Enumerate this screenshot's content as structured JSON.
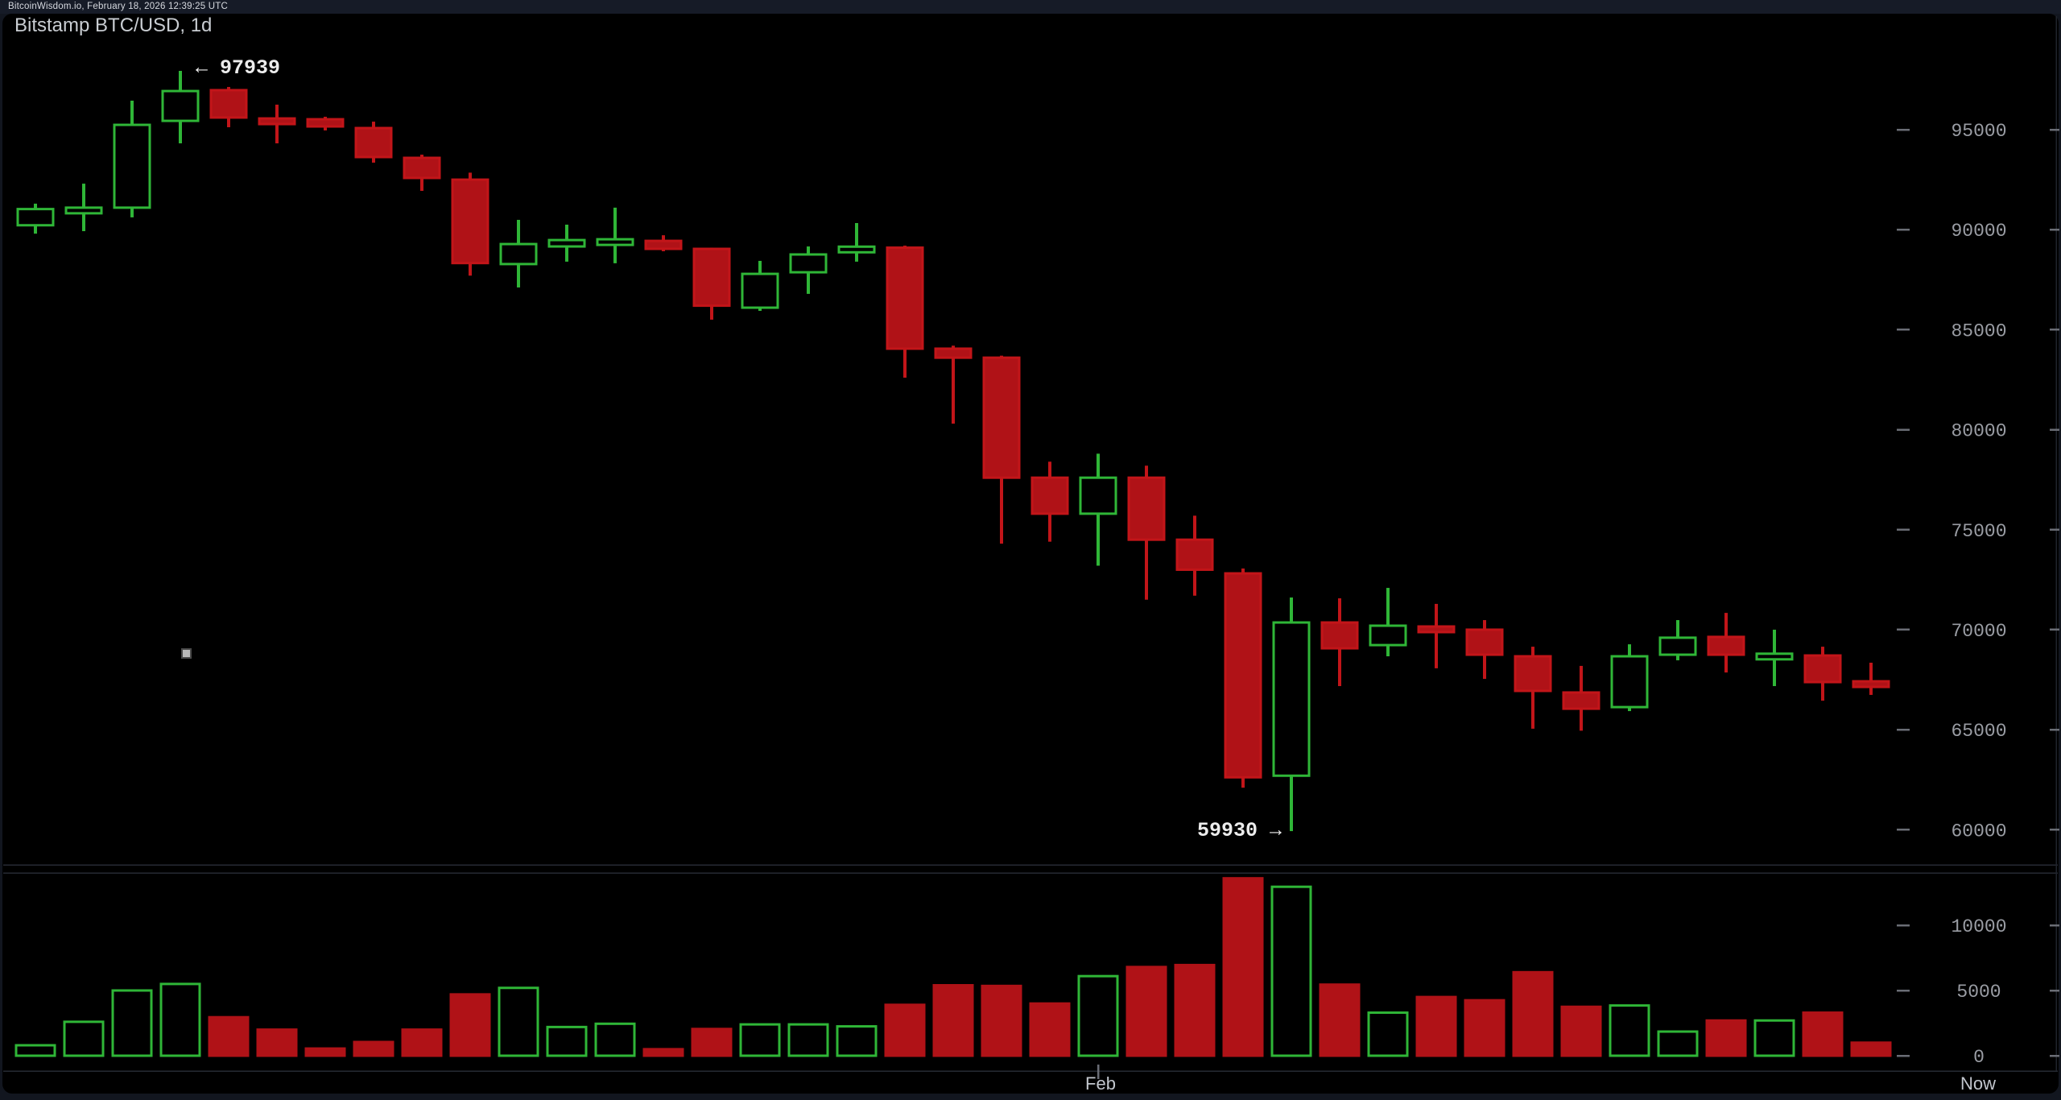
{
  "header": {
    "text": "BitcoinWisdom.io, February 18, 2026 12:39:25 UTC"
  },
  "chart": {
    "title": "Bitstamp BTC/USD, 1d",
    "high_annotation": "← 97939",
    "low_annotation": "59930 →",
    "month_label": "Feb",
    "now_label": "Now"
  },
  "colors": {
    "page_bg": "#12161f",
    "bar_bg": "#161b27",
    "chart_bg": "#000000",
    "up": "#2fb637",
    "down_fill": "#b01217",
    "down_bright": "#c21519",
    "axis_text": "#9a9da4",
    "tick_dash": "#6a6d75",
    "divider": "#262a33",
    "annotation_text": "#ececec"
  },
  "chart_data": {
    "type": "candlestick",
    "title": "Bitstamp BTC/USD, 1d",
    "exchange": "Bitstamp",
    "pair": "BTC/USD",
    "interval": "1d",
    "legend_position": "none",
    "grid": false,
    "price_axis": {
      "ticks": [
        95000,
        90000,
        85000,
        80000,
        75000,
        70000,
        65000,
        60000
      ],
      "side": "right"
    },
    "volume_axis": {
      "ticks": [
        10000,
        5000,
        0
      ],
      "side": "right"
    },
    "annotated_high": 97939,
    "annotated_low": 59930,
    "month_boundary_label": "Feb",
    "month_candle_index": 22,
    "now_label": "Now",
    "candles_ohlcv": [
      [
        90220,
        91300,
        89800,
        91030,
        800
      ],
      [
        90820,
        92300,
        89925,
        91100,
        2600
      ],
      [
        91100,
        96450,
        90615,
        95240,
        5000
      ],
      [
        95440,
        97939,
        94315,
        96930,
        5500
      ],
      [
        96975,
        97135,
        95120,
        95605,
        2950
      ],
      [
        95560,
        96250,
        94315,
        95440,
        2000
      ],
      [
        95520,
        95645,
        94960,
        95160,
        550
      ],
      [
        95080,
        95400,
        93350,
        93630,
        1050
      ],
      [
        93590,
        93750,
        91940,
        92585,
        2000
      ],
      [
        92500,
        92850,
        87700,
        88330,
        4700
      ],
      [
        88280,
        90490,
        87110,
        89280,
        5200
      ],
      [
        89160,
        90250,
        88400,
        89480,
        2200
      ],
      [
        89280,
        91100,
        88320,
        89520,
        2450
      ],
      [
        89440,
        89720,
        88920,
        89040,
        500
      ],
      [
        89040,
        89100,
        85500,
        86200,
        2050
      ],
      [
        86100,
        88440,
        85940,
        87790,
        2400
      ],
      [
        87870,
        89160,
        86790,
        88760,
        2400
      ],
      [
        88950,
        90330,
        88400,
        89150,
        2250
      ],
      [
        89100,
        89200,
        82600,
        84050,
        3900
      ],
      [
        84050,
        84200,
        80300,
        83600,
        5400
      ],
      [
        83600,
        83700,
        74300,
        77600,
        5350
      ],
      [
        77600,
        78400,
        74400,
        75800,
        4000
      ],
      [
        75800,
        78800,
        73200,
        77600,
        6100
      ],
      [
        77600,
        78200,
        71500,
        74500,
        6800
      ],
      [
        74500,
        75700,
        71700,
        73000,
        6950
      ],
      [
        72815,
        73060,
        62100,
        62620,
        13600
      ],
      [
        62700,
        71610,
        59930,
        70360,
        12950
      ],
      [
        70360,
        71570,
        67180,
        69070,
        5450
      ],
      [
        69230,
        72090,
        68670,
        70200,
        3300
      ],
      [
        70160,
        71290,
        68070,
        69960,
        4500
      ],
      [
        70000,
        70480,
        67540,
        68750,
        4250
      ],
      [
        68670,
        69150,
        65050,
        66940,
        6400
      ],
      [
        66860,
        68190,
        64950,
        66050,
        3750
      ],
      [
        66130,
        69270,
        65930,
        68670,
        3850
      ],
      [
        68750,
        70480,
        68470,
        69600,
        1850
      ],
      [
        69640,
        70840,
        67860,
        68750,
        2700
      ],
      [
        68720,
        70000,
        67180,
        68800,
        2700
      ],
      [
        68710,
        69150,
        66450,
        67380,
        3300
      ],
      [
        67420,
        68350,
        66740,
        67260,
        1000
      ]
    ]
  }
}
